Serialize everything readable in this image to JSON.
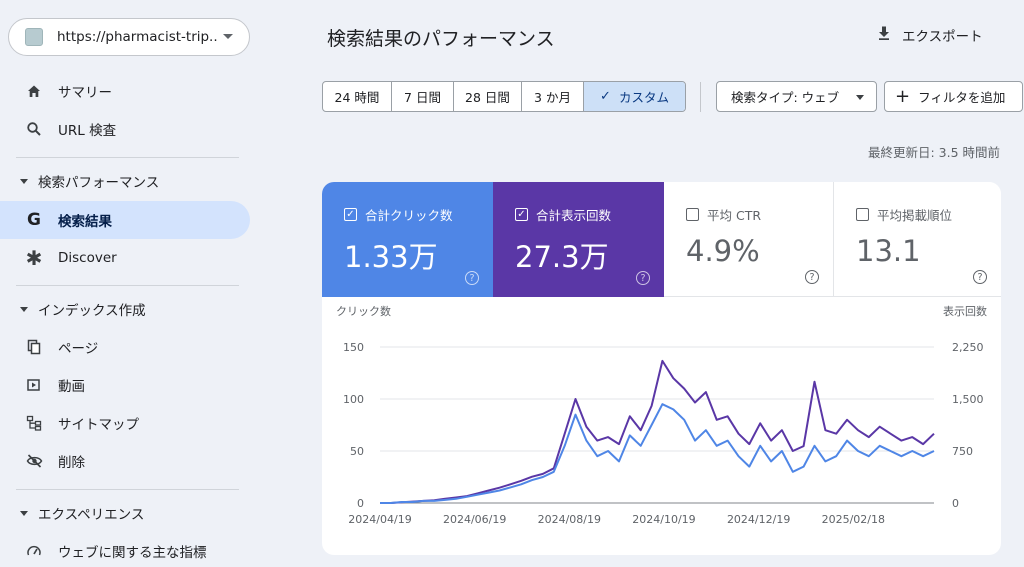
{
  "sidebar": {
    "property_url": "https://pharmacist-trip....",
    "items": [
      {
        "label": "サマリー",
        "icon": "home-icon"
      },
      {
        "label": "URL 検査",
        "icon": "search-icon"
      }
    ],
    "sections": [
      {
        "label": "検索パフォーマンス",
        "items": [
          {
            "label": "検索結果",
            "icon": "google-g-icon",
            "active": true
          },
          {
            "label": "Discover",
            "icon": "asterisk-icon"
          }
        ]
      },
      {
        "label": "インデックス作成",
        "items": [
          {
            "label": "ページ",
            "icon": "pages-icon"
          },
          {
            "label": "動画",
            "icon": "video-icon"
          },
          {
            "label": "サイトマップ",
            "icon": "sitemap-icon"
          },
          {
            "label": "削除",
            "icon": "eye-off-icon"
          }
        ]
      },
      {
        "label": "エクスペリエンス",
        "items": [
          {
            "label": "ウェブに関する主な指標",
            "icon": "gauge-icon"
          }
        ]
      }
    ]
  },
  "header": {
    "title": "検索結果のパフォーマンス",
    "export_label": "エクスポート"
  },
  "filters": {
    "ranges": [
      "24 時間",
      "7 日間",
      "28 日間",
      "3 か月",
      "カスタム"
    ],
    "selected_range": "カスタム",
    "search_type": "検索タイプ: ウェブ",
    "add_filter": "フィルタを追加",
    "last_updated": "最終更新日: 3.5 時間前"
  },
  "metrics": {
    "clicks": {
      "label": "合計クリック数",
      "value": "1.33万",
      "checked": true,
      "color": "#4f86e6"
    },
    "impressions": {
      "label": "合計表示回数",
      "value": "27.3万",
      "checked": true,
      "color": "#5a37a6"
    },
    "ctr": {
      "label": "平均 CTR",
      "value": "4.9%",
      "checked": false
    },
    "position": {
      "label": "平均掲載順位",
      "value": "13.1",
      "checked": false
    }
  },
  "chart_data": {
    "type": "line",
    "left_axis_label": "クリック数",
    "right_axis_label": "表示回数",
    "left_ticks": [
      "150",
      "100",
      "50",
      "0"
    ],
    "right_ticks": [
      "2,250",
      "1,500",
      "750",
      "0"
    ],
    "ylim_left": [
      0,
      150
    ],
    "ylim_right": [
      0,
      2250
    ],
    "x_tick_labels": [
      "2024/04/19",
      "2024/06/19",
      "2024/08/19",
      "2024/10/19",
      "2024/12/19",
      "2025/02/18"
    ],
    "x": [
      "2024-04-19",
      "2024-04-26",
      "2024-05-03",
      "2024-05-10",
      "2024-05-17",
      "2024-05-24",
      "2024-05-31",
      "2024-06-07",
      "2024-06-14",
      "2024-06-21",
      "2024-06-28",
      "2024-07-05",
      "2024-07-12",
      "2024-07-19",
      "2024-07-26",
      "2024-08-02",
      "2024-08-09",
      "2024-08-16",
      "2024-08-23",
      "2024-08-30",
      "2024-09-06",
      "2024-09-13",
      "2024-09-20",
      "2024-09-27",
      "2024-10-04",
      "2024-10-11",
      "2024-10-18",
      "2024-10-25",
      "2024-11-01",
      "2024-11-08",
      "2024-11-15",
      "2024-11-22",
      "2024-11-29",
      "2024-12-06",
      "2024-12-13",
      "2024-12-20",
      "2024-12-27",
      "2025-01-03",
      "2025-01-10",
      "2025-01-17",
      "2025-01-24",
      "2025-01-31",
      "2025-02-07",
      "2025-02-14",
      "2025-02-21",
      "2025-02-28",
      "2025-03-07",
      "2025-03-14",
      "2025-03-21",
      "2025-03-28",
      "2025-04-04",
      "2025-04-11"
    ],
    "series": [
      {
        "name": "クリック数",
        "axis": "left",
        "color": "#4f86e6",
        "values": [
          0,
          0,
          1,
          1,
          2,
          2,
          3,
          4,
          6,
          8,
          10,
          12,
          15,
          18,
          22,
          25,
          30,
          55,
          85,
          60,
          45,
          50,
          40,
          65,
          55,
          75,
          95,
          90,
          80,
          60,
          70,
          55,
          60,
          45,
          35,
          55,
          40,
          50,
          30,
          35,
          55,
          40,
          45,
          60,
          50,
          45,
          55,
          50,
          45,
          50,
          45,
          50
        ]
      },
      {
        "name": "表示回数",
        "axis": "right",
        "color": "#5a37a6",
        "values": [
          0,
          0,
          10,
          20,
          30,
          40,
          60,
          80,
          100,
          140,
          180,
          220,
          270,
          320,
          380,
          420,
          500,
          1000,
          1500,
          1100,
          900,
          950,
          850,
          1250,
          1050,
          1400,
          2050,
          1800,
          1650,
          1450,
          1600,
          1200,
          1250,
          1000,
          850,
          1150,
          900,
          1050,
          750,
          820,
          1750,
          1050,
          1000,
          1200,
          1050,
          950,
          1100,
          1000,
          900,
          950,
          850,
          1000
        ]
      }
    ]
  }
}
